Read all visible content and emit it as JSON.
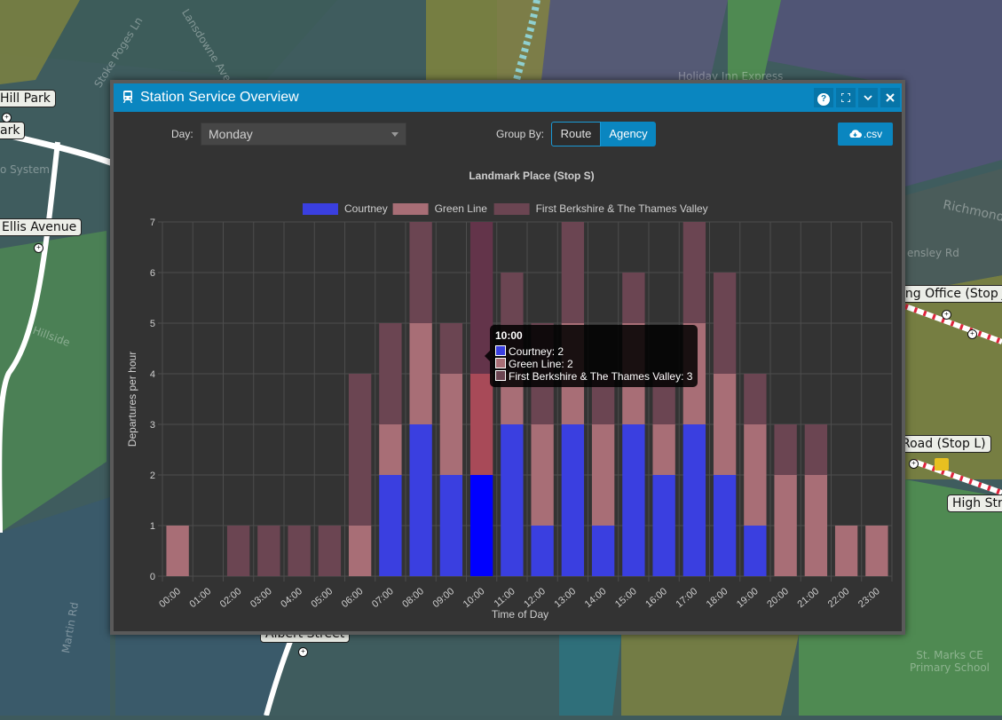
{
  "dialog": {
    "title": "Station Service Overview",
    "buttons": {
      "help": "?",
      "maximize": "⛶",
      "collapse": "⌄",
      "close": "✕"
    }
  },
  "controls": {
    "day_label": "Day:",
    "day_value": "Monday",
    "group_by_label": "Group By:",
    "group_by_options": [
      "Route",
      "Agency"
    ],
    "group_by_selected": "Agency",
    "export_label": ".csv"
  },
  "chart_data": {
    "type": "bar",
    "stacked": true,
    "title": "Landmark Place (Stop S)",
    "xlabel": "Time of Day",
    "ylabel": "Departures per hour",
    "ylim": [
      0,
      7
    ],
    "yticks": [
      0,
      1,
      2,
      3,
      4,
      5,
      6,
      7
    ],
    "legend_position": "top",
    "grid": true,
    "categories": [
      "00:00",
      "01:00",
      "02:00",
      "03:00",
      "04:00",
      "05:00",
      "06:00",
      "07:00",
      "08:00",
      "09:00",
      "10:00",
      "11:00",
      "12:00",
      "13:00",
      "14:00",
      "15:00",
      "16:00",
      "17:00",
      "18:00",
      "19:00",
      "20:00",
      "21:00",
      "22:00",
      "23:00"
    ],
    "series": [
      {
        "name": "Courtney",
        "color": "#3a3fe0",
        "values": [
          0,
          0,
          0,
          0,
          0,
          0,
          0,
          2,
          3,
          2,
          2,
          3,
          1,
          3,
          1,
          3,
          2,
          3,
          2,
          1,
          0,
          0,
          0,
          0
        ]
      },
      {
        "name": "Green Line",
        "color": "#a86e76",
        "values": [
          1,
          0,
          0,
          0,
          0,
          0,
          1,
          1,
          2,
          2,
          2,
          1,
          2,
          2,
          2,
          2,
          1,
          2,
          2,
          2,
          2,
          2,
          1,
          1
        ]
      },
      {
        "name": "First Berkshire & The Thames Valley",
        "color": "#6b4552",
        "values": [
          0,
          0,
          1,
          1,
          1,
          1,
          3,
          2,
          2,
          1,
          3,
          2,
          2,
          2,
          1,
          1,
          1,
          2,
          2,
          1,
          1,
          1,
          0,
          0
        ]
      }
    ],
    "highlighted_category": "10:00",
    "highlight_colors": [
      "#0000ff",
      "#a84a58",
      "#63344a"
    ]
  },
  "tooltip": {
    "title": "10:00",
    "rows": [
      {
        "text": "Courtney: 2",
        "color": "#3a3fe0"
      },
      {
        "text": "Green Line: 2",
        "color": "#a86e76"
      },
      {
        "text": "First Berkshire & The Thames Valley: 3",
        "color": "#6b4552"
      }
    ]
  },
  "map": {
    "labels": [
      "Hill Park",
      "ark",
      "Ellis Avenue",
      "ing Office (Stop J",
      "Road (Stop L)",
      "High Str",
      "Albert Street"
    ],
    "texts": [
      "Stoke Poges Ln",
      "Lansdowne Ave",
      "Holiday Inn Express",
      "Richmond",
      "Hillside",
      "St. Marks CE Primary School",
      "o System",
      "ensley Rd",
      "Martin Rd"
    ]
  },
  "colors": {
    "accent": "#0a86c0",
    "dialog_bg": "#333333",
    "map_base": "#3e5a5c"
  }
}
